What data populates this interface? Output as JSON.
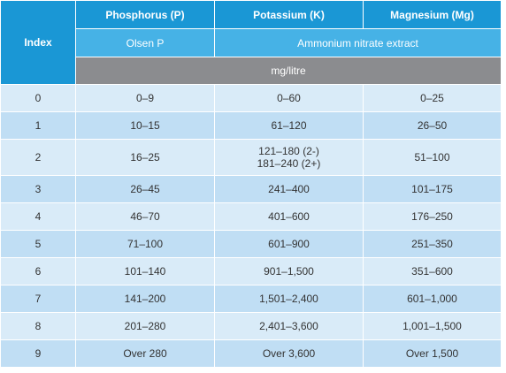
{
  "header": {
    "index_label": "Index",
    "col_labels": [
      "Phosphorus (P)",
      "Potassium (K)",
      "Magnesium (Mg)"
    ],
    "method_p": "Olsen P",
    "method_k_mg": "Ammonium nitrate extract",
    "units": "mg/litre"
  },
  "rows": [
    {
      "index": "0",
      "p": "0–9",
      "k": [
        "0–60"
      ],
      "mg": "0–25"
    },
    {
      "index": "1",
      "p": "10–15",
      "k": [
        "61–120"
      ],
      "mg": "26–50"
    },
    {
      "index": "2",
      "p": "16–25",
      "k": [
        "121–180 (2-)",
        "181–240 (2+)"
      ],
      "mg": "51–100"
    },
    {
      "index": "3",
      "p": "26–45",
      "k": [
        "241–400"
      ],
      "mg": "101–175"
    },
    {
      "index": "4",
      "p": "46–70",
      "k": [
        "401–600"
      ],
      "mg": "176–250"
    },
    {
      "index": "5",
      "p": "71–100",
      "k": [
        "601–900"
      ],
      "mg": "251–350"
    },
    {
      "index": "6",
      "p": "101–140",
      "k": [
        "901–1,500"
      ],
      "mg": "351–600"
    },
    {
      "index": "7",
      "p": "141–200",
      "k": [
        "1,501–2,400"
      ],
      "mg": "601–1,000"
    },
    {
      "index": "8",
      "p": "201–280",
      "k": [
        "2,401–3,600"
      ],
      "mg": "1,001–1,500"
    },
    {
      "index": "9",
      "p": "Over 280",
      "k": [
        "Over 3,600"
      ],
      "mg": "Over 1,500"
    }
  ],
  "colors": {
    "header_dark": "#1a97d5",
    "header_light": "#46b2e6",
    "units_band": "#8b8c8f",
    "row_light": "#d9ebf8",
    "row_dark": "#c0def4"
  }
}
